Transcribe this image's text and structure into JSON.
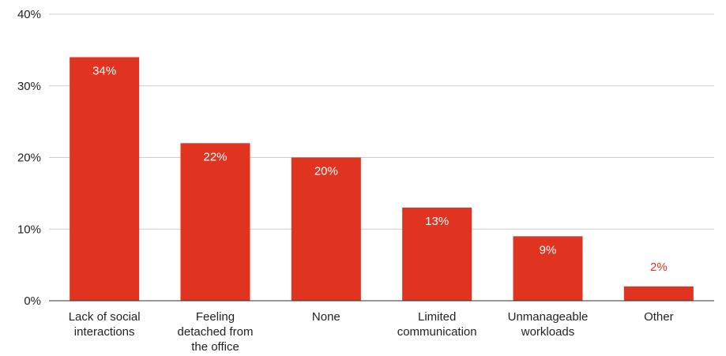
{
  "chart_data": {
    "type": "bar",
    "categories": [
      [
        "Lack of social",
        "interactions"
      ],
      [
        "Feeling",
        "detached from",
        "the office"
      ],
      [
        "None"
      ],
      [
        "Limited",
        "communication"
      ],
      [
        "Unmanageable",
        "workloads"
      ],
      [
        "Other"
      ]
    ],
    "values": [
      34,
      22,
      20,
      13,
      9,
      2
    ],
    "data_labels": [
      "34%",
      "22%",
      "20%",
      "13%",
      "9%",
      "2%"
    ],
    "y_ticks": [
      {
        "value": 0,
        "label": "0%"
      },
      {
        "value": 10,
        "label": "10%"
      },
      {
        "value": 20,
        "label": "20%"
      },
      {
        "value": 30,
        "label": "30%"
      },
      {
        "value": 40,
        "label": "40%"
      }
    ],
    "ylim": [
      0,
      40
    ],
    "title": "",
    "xlabel": "",
    "ylabel": "",
    "grid": true,
    "colors": {
      "bar": "#e03320",
      "label_inside": "#ffffff",
      "label_outside": "#e03320",
      "grid": "#cccccc",
      "axis": "#333333",
      "text": "#222222"
    }
  }
}
